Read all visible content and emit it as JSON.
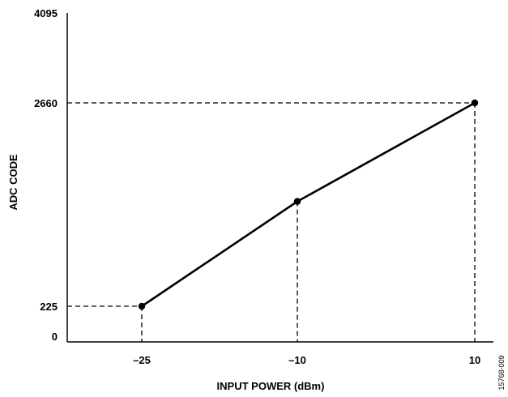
{
  "chart_data": {
    "type": "line",
    "xlabel": "INPUT POWER (dBm)",
    "ylabel": "ADC CODE",
    "xlim": [
      -34,
      14
    ],
    "ylim": [
      0,
      4095
    ],
    "x_ticks": [
      -25,
      -10,
      10
    ],
    "x_tick_labels": [
      "–25",
      "–10",
      "10"
    ],
    "y_ticks": [
      0,
      225,
      2660,
      4095
    ],
    "y_tick_labels": [
      "0",
      "225",
      "2660",
      "4095"
    ],
    "series": [
      {
        "x": [
          -25,
          -10,
          10
        ],
        "y": [
          225,
          1480,
          2660
        ]
      }
    ],
    "guides": {
      "horizontal_dashed_at": [
        225,
        2660
      ],
      "vertical_dashed_at": [
        -25,
        -10,
        10
      ]
    },
    "grid": false,
    "legend": "none"
  },
  "figure_id": "15768-009"
}
